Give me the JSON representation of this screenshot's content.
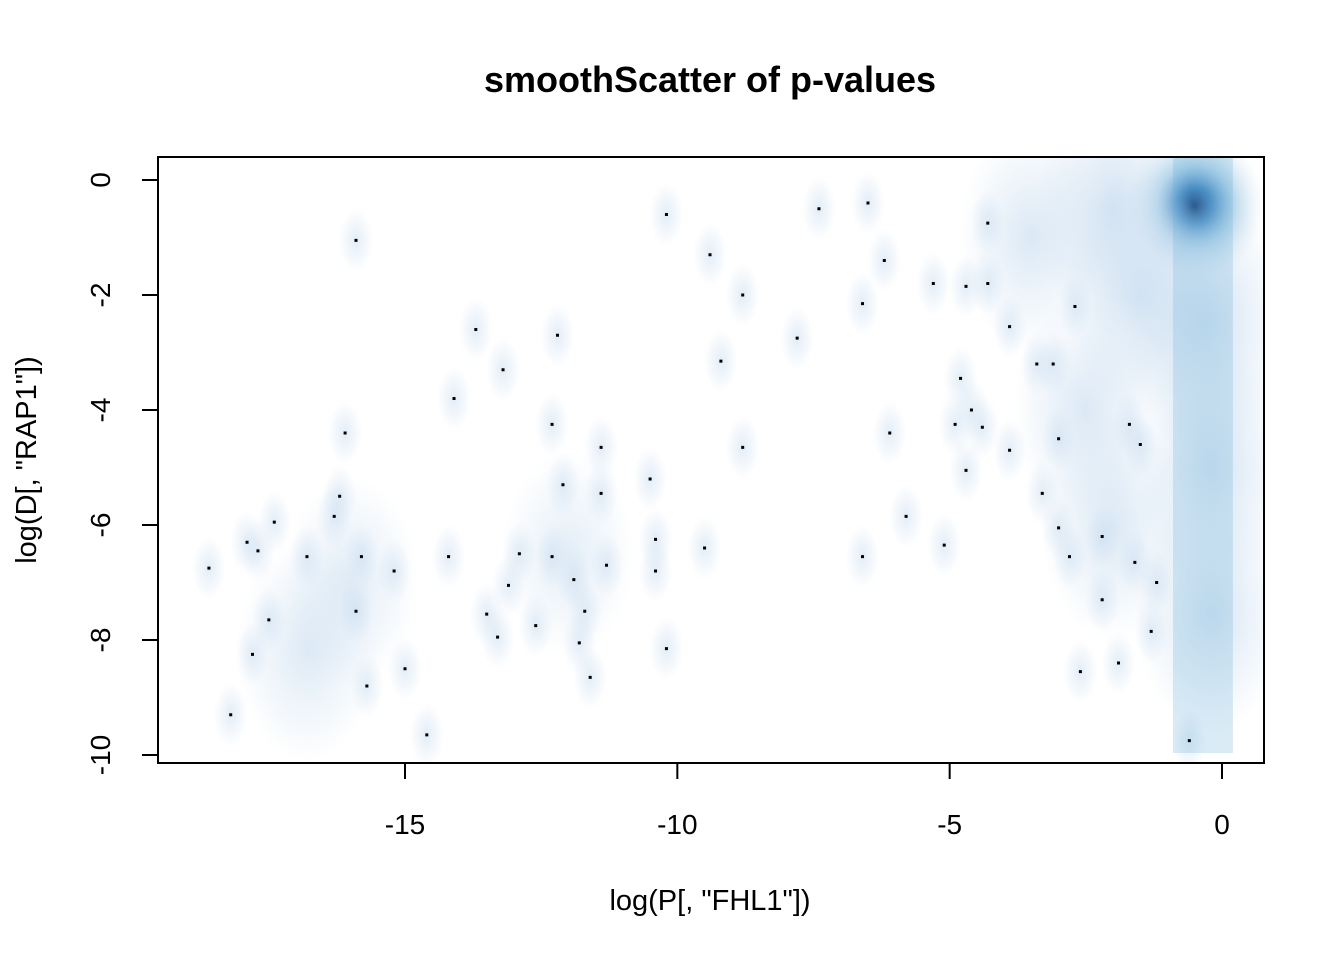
{
  "chart_data": {
    "type": "scatter",
    "title": "smoothScatter of p-values",
    "xlabel": "log(P[, \"FHL1\"])",
    "ylabel": "log(D[, \"RAP1\"])",
    "xlim": [
      -19.5,
      0.8
    ],
    "ylim": [
      -10.1,
      0.4
    ],
    "x_ticks": [
      -15,
      -10,
      -5,
      0
    ],
    "y_ticks": [
      0,
      -2,
      -4,
      -6,
      -8,
      -10
    ],
    "grid": false,
    "density_colors": [
      "#ffffff",
      "#c6dbef",
      "#6baed6",
      "#08306b"
    ],
    "outlier_points": [
      [
        -18.6,
        -6.75
      ],
      [
        -18.2,
        -9.3
      ],
      [
        -17.9,
        -6.3
      ],
      [
        -17.8,
        -8.25
      ],
      [
        -17.7,
        -6.45
      ],
      [
        -17.5,
        -7.65
      ],
      [
        -17.4,
        -5.95
      ],
      [
        -16.8,
        -6.55
      ],
      [
        -16.3,
        -5.85
      ],
      [
        -16.2,
        -5.5
      ],
      [
        -16.1,
        -4.4
      ],
      [
        -15.9,
        -1.05
      ],
      [
        -15.9,
        -7.5
      ],
      [
        -15.8,
        -6.55
      ],
      [
        -15.7,
        -8.8
      ],
      [
        -15.2,
        -6.8
      ],
      [
        -15.0,
        -8.5
      ],
      [
        -14.6,
        -9.65
      ],
      [
        -14.2,
        -6.55
      ],
      [
        -14.1,
        -3.8
      ],
      [
        -13.7,
        -2.6
      ],
      [
        -13.5,
        -7.55
      ],
      [
        -13.3,
        -7.95
      ],
      [
        -13.2,
        -3.3
      ],
      [
        -13.1,
        -7.05
      ],
      [
        -12.9,
        -6.5
      ],
      [
        -12.6,
        -7.75
      ],
      [
        -12.3,
        -4.25
      ],
      [
        -12.3,
        -6.55
      ],
      [
        -12.2,
        -2.7
      ],
      [
        -12.1,
        -5.3
      ],
      [
        -11.9,
        -6.95
      ],
      [
        -11.8,
        -8.05
      ],
      [
        -11.7,
        -7.5
      ],
      [
        -11.6,
        -8.65
      ],
      [
        -11.4,
        -4.65
      ],
      [
        -11.4,
        -5.45
      ],
      [
        -11.3,
        -6.7
      ],
      [
        -10.5,
        -5.2
      ],
      [
        -10.4,
        -6.25
      ],
      [
        -10.4,
        -6.8
      ],
      [
        -10.2,
        -8.15
      ],
      [
        -10.2,
        -0.6
      ],
      [
        -9.5,
        -6.4
      ],
      [
        -9.4,
        -1.3
      ],
      [
        -9.2,
        -3.15
      ],
      [
        -8.8,
        -2.0
      ],
      [
        -8.8,
        -4.65
      ],
      [
        -7.8,
        -2.75
      ],
      [
        -7.4,
        -0.5
      ],
      [
        -6.6,
        -2.15
      ],
      [
        -6.6,
        -6.55
      ],
      [
        -6.5,
        -0.4
      ],
      [
        -6.2,
        -1.4
      ],
      [
        -6.1,
        -4.4
      ],
      [
        -5.8,
        -5.85
      ],
      [
        -5.3,
        -1.8
      ],
      [
        -5.1,
        -6.35
      ],
      [
        -4.9,
        -4.25
      ],
      [
        -4.8,
        -3.45
      ],
      [
        -4.7,
        -5.05
      ],
      [
        -4.7,
        -1.85
      ],
      [
        -4.6,
        -4.0
      ],
      [
        -4.4,
        -4.3
      ],
      [
        -4.3,
        -0.75
      ],
      [
        -4.3,
        -1.8
      ],
      [
        -3.9,
        -4.7
      ],
      [
        -3.9,
        -2.55
      ],
      [
        -3.4,
        -3.2
      ],
      [
        -3.3,
        -5.45
      ],
      [
        -3.1,
        -3.2
      ],
      [
        -3.0,
        -4.5
      ],
      [
        -3.0,
        -6.05
      ],
      [
        -2.8,
        -6.55
      ],
      [
        -2.7,
        -2.2
      ],
      [
        -2.6,
        -8.55
      ],
      [
        -2.2,
        -6.2
      ],
      [
        -2.2,
        -7.3
      ],
      [
        -1.9,
        -8.4
      ],
      [
        -1.7,
        -4.25
      ],
      [
        -1.6,
        -6.65
      ],
      [
        -1.5,
        -4.6
      ],
      [
        -1.3,
        -7.85
      ],
      [
        -1.2,
        -7.0
      ],
      [
        -0.6,
        -9.75
      ]
    ],
    "density_clusters": [
      {
        "x": -0.5,
        "y": -0.45,
        "weight": 1.0
      },
      {
        "x": -0.3,
        "y": -2.5,
        "weight": 0.55
      },
      {
        "x": -0.2,
        "y": -5.0,
        "weight": 0.45
      },
      {
        "x": -0.2,
        "y": -7.5,
        "weight": 0.4
      },
      {
        "x": -2.0,
        "y": -0.5,
        "weight": 0.45
      },
      {
        "x": -3.5,
        "y": -1.0,
        "weight": 0.3
      },
      {
        "x": -1.5,
        "y": -2.0,
        "weight": 0.4
      },
      {
        "x": -2.5,
        "y": -4.0,
        "weight": 0.3
      },
      {
        "x": -2.0,
        "y": -6.0,
        "weight": 0.3
      },
      {
        "x": -16.8,
        "y": -8.2,
        "weight": 0.25
      },
      {
        "x": -16.0,
        "y": -7.0,
        "weight": 0.2
      },
      {
        "x": -12.0,
        "y": -6.5,
        "weight": 0.15
      }
    ]
  }
}
